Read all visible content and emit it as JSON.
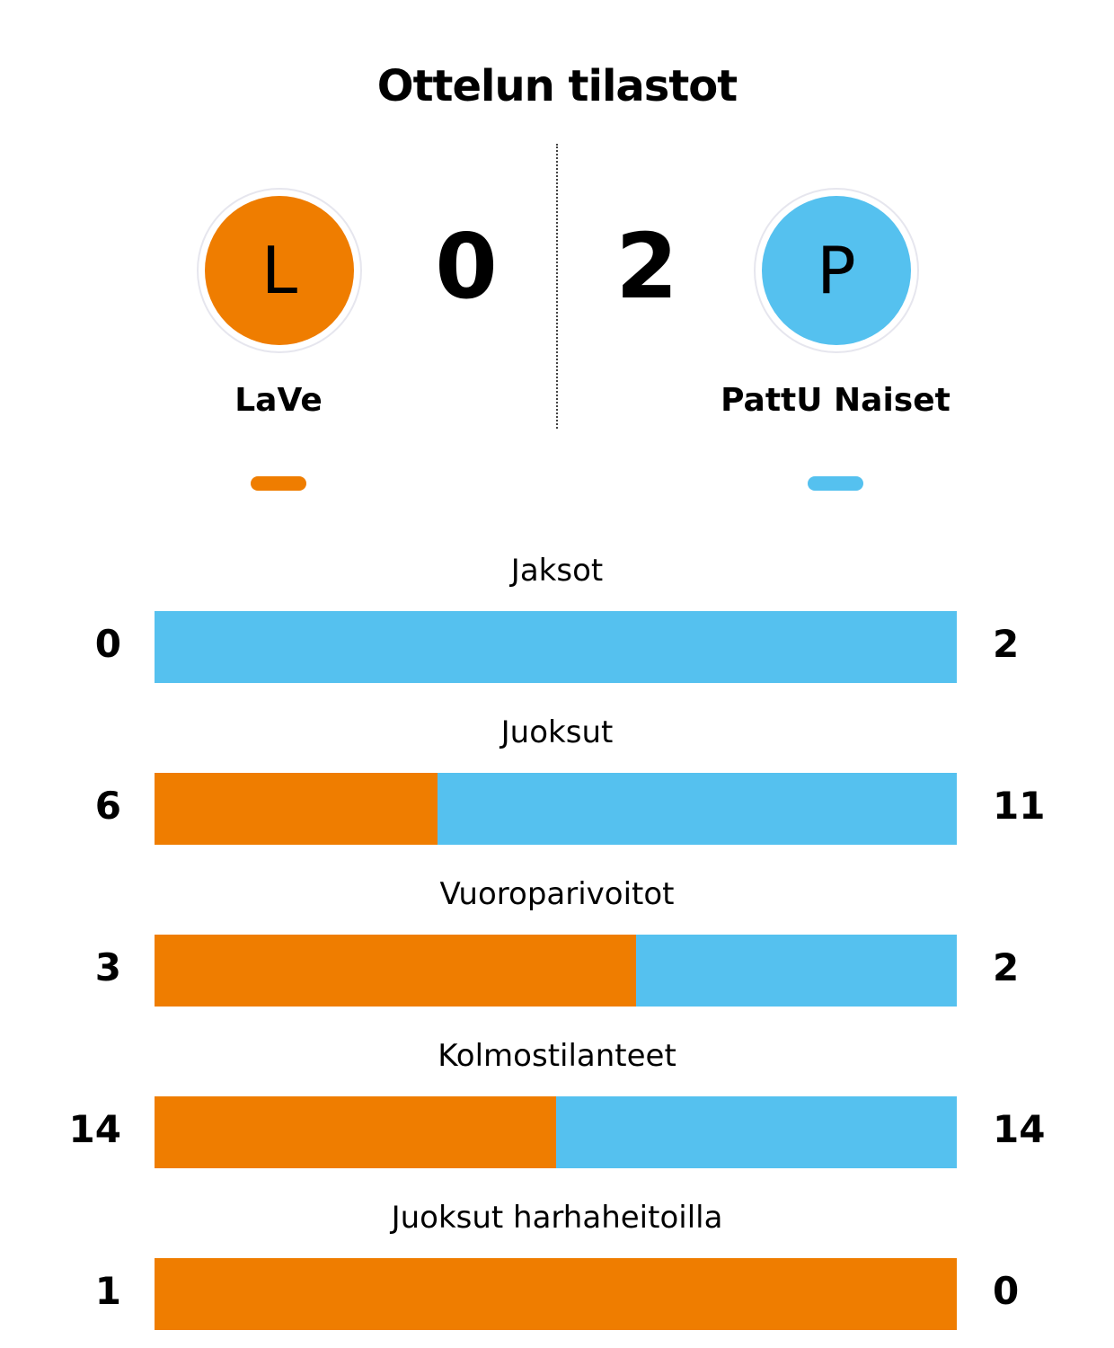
{
  "title": "Ottelun tilastot",
  "colors": {
    "home": "#EF7D00",
    "away": "#55C1EF"
  },
  "home": {
    "name": "LaVe",
    "initial": "L",
    "score": "0"
  },
  "away": {
    "name": "PattU Naiset",
    "initial": "P",
    "score": "2"
  },
  "chart_data": {
    "type": "bar",
    "categories": [
      "Jaksot",
      "Juoksut",
      "Vuoroparivoitot",
      "Kolmostilanteet",
      "Juoksut harhaheitoilla"
    ],
    "series": [
      {
        "name": "LaVe",
        "values": [
          0,
          6,
          3,
          14,
          1
        ]
      },
      {
        "name": "PattU Naiset",
        "values": [
          2,
          11,
          2,
          14,
          0
        ]
      }
    ]
  }
}
